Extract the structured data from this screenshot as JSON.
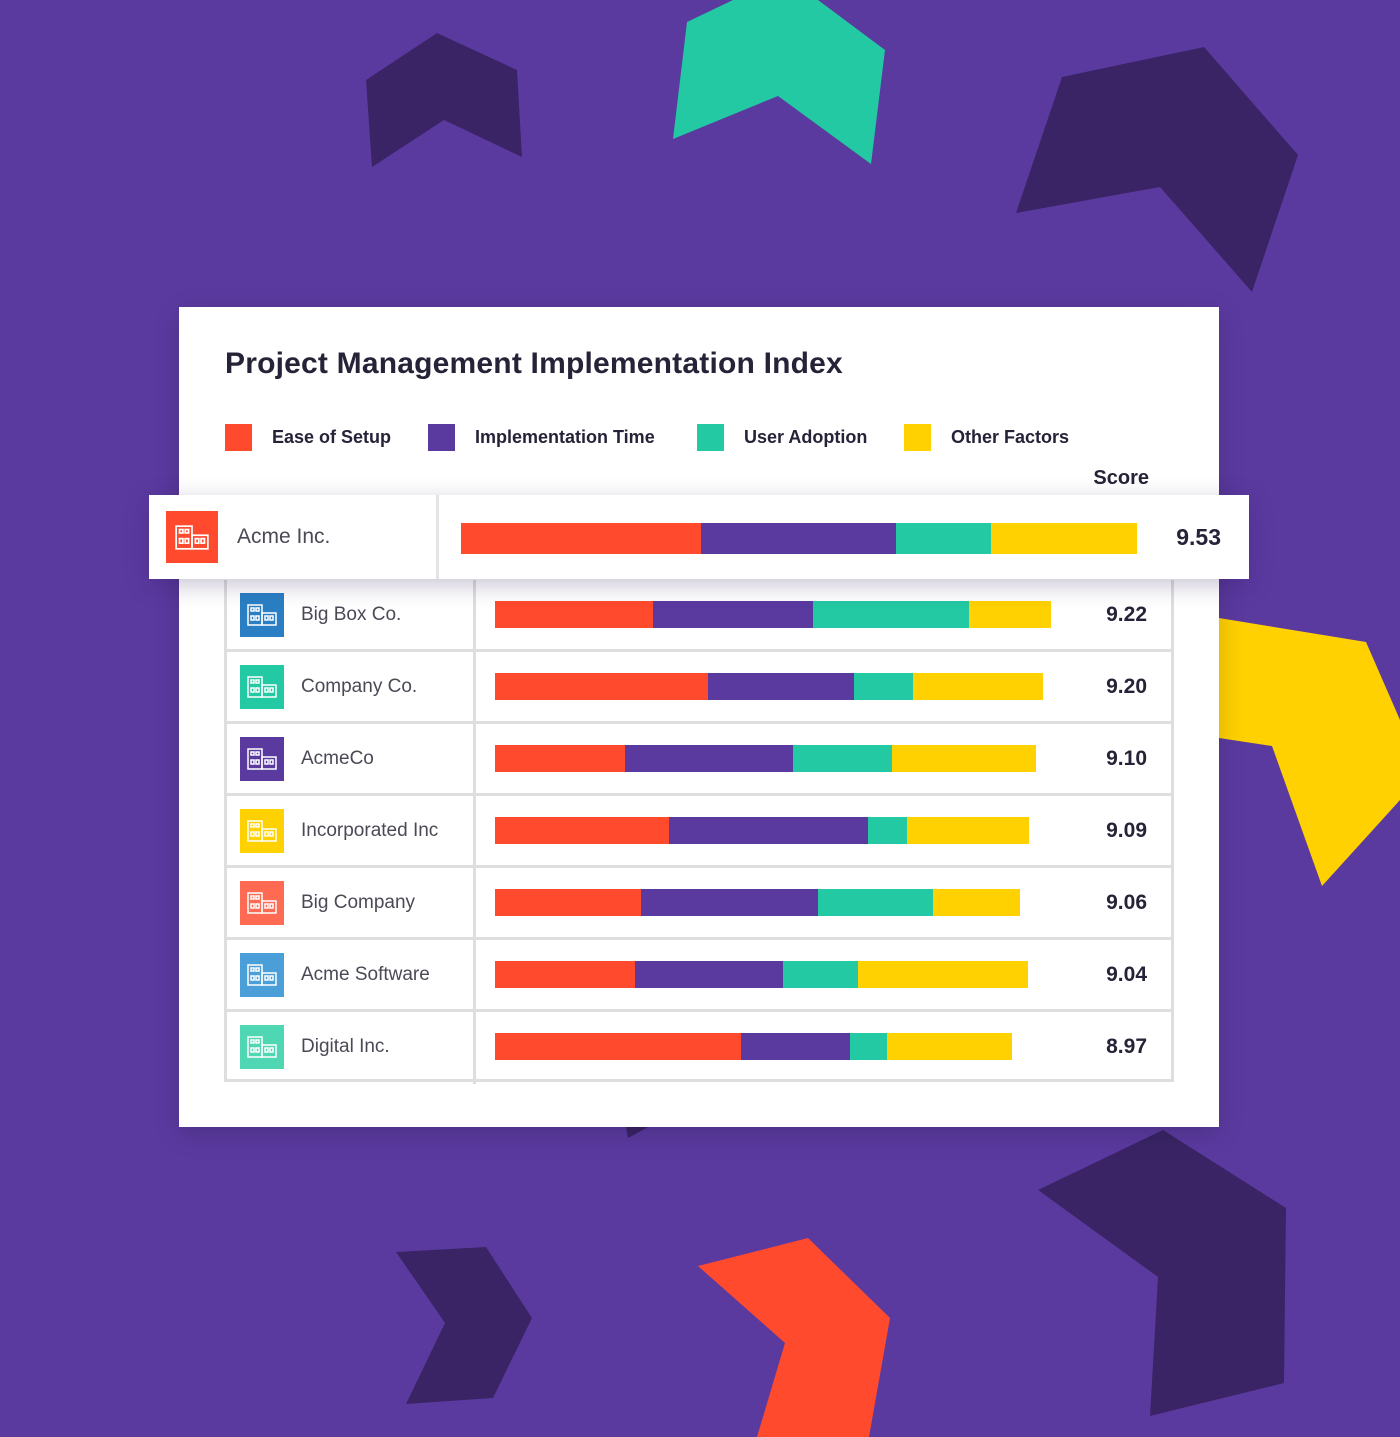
{
  "colors": {
    "background": "#5b3aa0",
    "dark_shape": "#3a2466",
    "ease_of_setup": "#ff4a2e",
    "implementation_time": "#5b3aa0",
    "user_adoption": "#23c9a3",
    "other_factors": "#ffd100"
  },
  "chart_data": {
    "type": "bar",
    "orientation": "horizontal",
    "stacked": true,
    "title": "Project Management Implementation Index",
    "score_header": "Score",
    "legend": [
      "Ease of Setup",
      "Implementation Time",
      "User Adoption",
      "Other Factors"
    ],
    "legend_position": "top",
    "categories": [
      "Acme Inc.",
      "Big Box Co.",
      "Company Co.",
      "AcmeCo",
      "Incorporated Inc",
      "Big Company",
      "Acme Software",
      "Digital Inc."
    ],
    "scores": [
      "9.53",
      "9.22",
      "9.20",
      "9.10",
      "9.09",
      "9.06",
      "9.04",
      "8.97"
    ],
    "logo_colors": [
      "#ff4a2e",
      "#2a7fc4",
      "#23c9a3",
      "#5b3aa0",
      "#ffd100",
      "#ff6a52",
      "#4a9fd8",
      "#4fd6b3"
    ],
    "series": [
      {
        "name": "Ease of Setup",
        "color": "#ff4a2e",
        "values": [
          3.39,
          2.62,
          3.53,
          2.16,
          2.89,
          2.42,
          2.32,
          4.08
        ]
      },
      {
        "name": "Implementation Time",
        "color": "#5b3aa0",
        "values": [
          2.74,
          2.66,
          2.43,
          2.79,
          3.29,
          2.93,
          2.46,
          1.81
        ]
      },
      {
        "name": "User Adoption",
        "color": "#23c9a3",
        "values": [
          1.35,
          2.58,
          0.97,
          1.64,
          0.65,
          1.91,
          1.24,
          0.61
        ]
      },
      {
        "name": "Other Factors",
        "color": "#ffd100",
        "values": [
          2.05,
          1.36,
          2.16,
          2.38,
          2.02,
          1.45,
          2.82,
          2.07
        ]
      }
    ],
    "featured_index": 0
  }
}
